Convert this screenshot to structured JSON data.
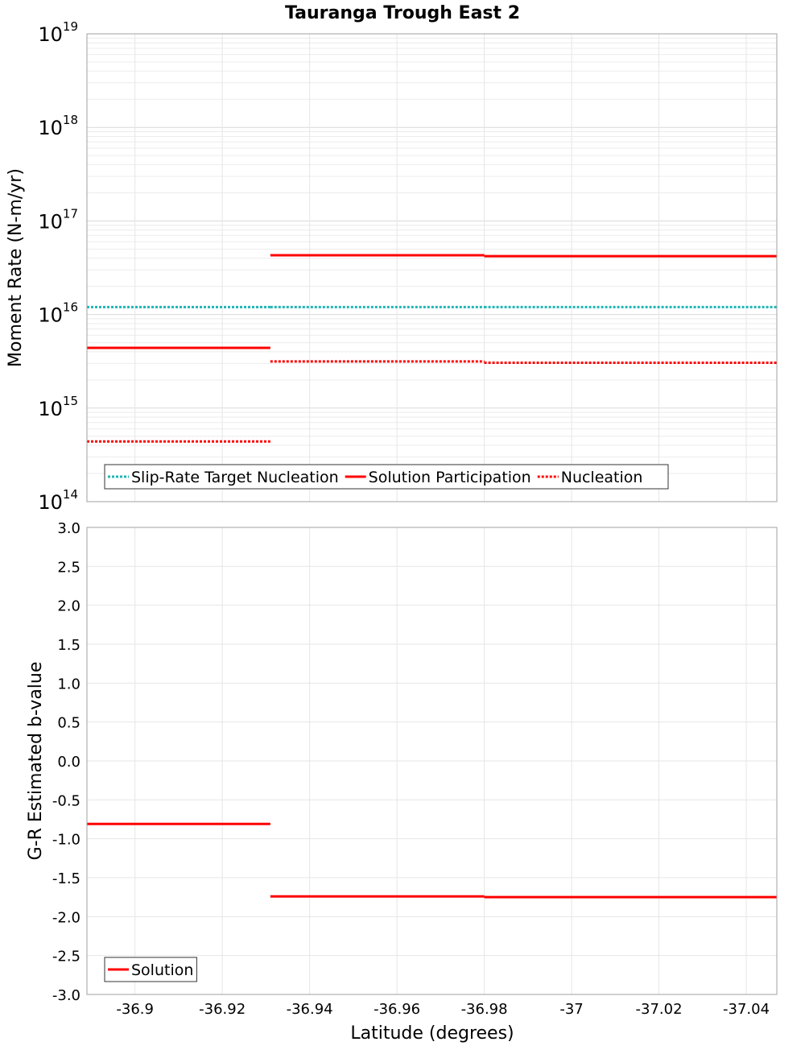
{
  "chart_data": {
    "type": "line",
    "title": "Tauranga Trough East 2",
    "xlabel": "Latitude (degrees)",
    "x_range": [
      -36.889,
      -37.047
    ],
    "x_ticks": [
      -36.9,
      -36.92,
      -36.94,
      -36.96,
      -36.98,
      -37,
      -37.02,
      -37.04
    ],
    "x_tick_labels": [
      "-36.9",
      "-36.92",
      "-36.94",
      "-36.96",
      "-36.98",
      "-37",
      "-37.02",
      "-37.04"
    ],
    "panels": [
      {
        "name": "moment-rate",
        "ylabel": "Moment Rate (N-m/yr)",
        "y_scale": "log",
        "ylim": [
          100000000000000.0,
          1e+19
        ],
        "y_tick_exponents": [
          "14",
          "15",
          "16",
          "17",
          "18",
          "19"
        ],
        "y_tick_base": "10",
        "grid": true,
        "legend_position": "bottom-left",
        "series": [
          {
            "name": "Slip-Rate Target Nucleation",
            "color": "#1fb5b5",
            "style": "dotted",
            "segments": [
              {
                "x": [
                  -36.889,
                  -36.931
                ],
                "y": 1.2e+16
              },
              {
                "x": [
                  -36.931,
                  -36.98
                ],
                "y": 1.2e+16
              },
              {
                "x": [
                  -36.98,
                  -37.047
                ],
                "y": 1.2e+16
              }
            ]
          },
          {
            "name": "Solution Participation",
            "color": "#ff0000",
            "style": "solid",
            "segments": [
              {
                "x": [
                  -36.889,
                  -36.931
                ],
                "y": 4400000000000000.0
              },
              {
                "x": [
                  -36.931,
                  -36.98
                ],
                "y": 4.3e+16
              },
              {
                "x": [
                  -36.98,
                  -37.047
                ],
                "y": 4.2e+16
              }
            ]
          },
          {
            "name": "Nucleation",
            "color": "#ff0000",
            "style": "dotted",
            "segments": [
              {
                "x": [
                  -36.889,
                  -36.931
                ],
                "y": 440000000000000.0
              },
              {
                "x": [
                  -36.931,
                  -36.98
                ],
                "y": 3150000000000000.0
              },
              {
                "x": [
                  -36.98,
                  -37.047
                ],
                "y": 3050000000000000.0
              }
            ]
          }
        ]
      },
      {
        "name": "b-value",
        "ylabel": "G-R Estimated b-value",
        "y_scale": "linear",
        "ylim": [
          -3.0,
          3.0
        ],
        "y_ticks": [
          3.0,
          2.5,
          2.0,
          1.5,
          1.0,
          0.5,
          0.0,
          -0.5,
          -1.0,
          -1.5,
          -2.0,
          -2.5,
          -3.0
        ],
        "y_tick_labels": [
          "3.0",
          "2.5",
          "2.0",
          "1.5",
          "1.0",
          "0.5",
          "0.0",
          "-0.5",
          "-1.0",
          "-1.5",
          "-2.0",
          "-2.5",
          "-3.0"
        ],
        "grid": true,
        "legend_position": "bottom-left",
        "series": [
          {
            "name": "Solution",
            "color": "#ff0000",
            "style": "solid",
            "segments": [
              {
                "x": [
                  -36.889,
                  -36.931
                ],
                "y": -0.81
              },
              {
                "x": [
                  -36.931,
                  -36.98
                ],
                "y": -1.74
              },
              {
                "x": [
                  -36.98,
                  -37.047
                ],
                "y": -1.75
              }
            ]
          }
        ]
      }
    ]
  }
}
